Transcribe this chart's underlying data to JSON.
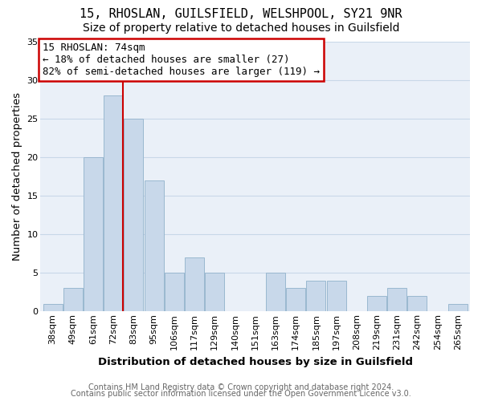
{
  "title1": "15, RHOSLAN, GUILSFIELD, WELSHPOOL, SY21 9NR",
  "title2": "Size of property relative to detached houses in Guilsfield",
  "xlabel": "Distribution of detached houses by size in Guilsfield",
  "ylabel": "Number of detached properties",
  "footer1": "Contains HM Land Registry data © Crown copyright and database right 2024.",
  "footer2": "Contains public sector information licensed under the Open Government Licence v3.0.",
  "annotation_title": "15 RHOSLAN: 74sqm",
  "annotation_line1": "← 18% of detached houses are smaller (27)",
  "annotation_line2": "82% of semi-detached houses are larger (119) →",
  "bar_labels": [
    "38sqm",
    "49sqm",
    "61sqm",
    "72sqm",
    "83sqm",
    "95sqm",
    "106sqm",
    "117sqm",
    "129sqm",
    "140sqm",
    "151sqm",
    "163sqm",
    "174sqm",
    "185sqm",
    "197sqm",
    "208sqm",
    "219sqm",
    "231sqm",
    "242sqm",
    "254sqm",
    "265sqm"
  ],
  "bar_values": [
    1,
    3,
    20,
    28,
    25,
    17,
    5,
    7,
    5,
    0,
    0,
    5,
    3,
    4,
    4,
    0,
    2,
    3,
    2,
    0,
    1
  ],
  "bar_color": "#c8d8ea",
  "bar_edgecolor": "#9ab8d0",
  "vline_color": "#cc0000",
  "vline_x_index": 3,
  "vline_x_offset": 0.475,
  "ylim": [
    0,
    35
  ],
  "yticks": [
    0,
    5,
    10,
    15,
    20,
    25,
    30,
    35
  ],
  "bg_color": "#ffffff",
  "plot_bg_color": "#eaf0f8",
  "grid_color": "#c8d8e8",
  "annotation_box_edgecolor": "#cc0000",
  "title_fontsize": 11,
  "subtitle_fontsize": 10,
  "axis_label_fontsize": 9.5,
  "tick_fontsize": 8,
  "annotation_fontsize": 9,
  "footer_fontsize": 7
}
